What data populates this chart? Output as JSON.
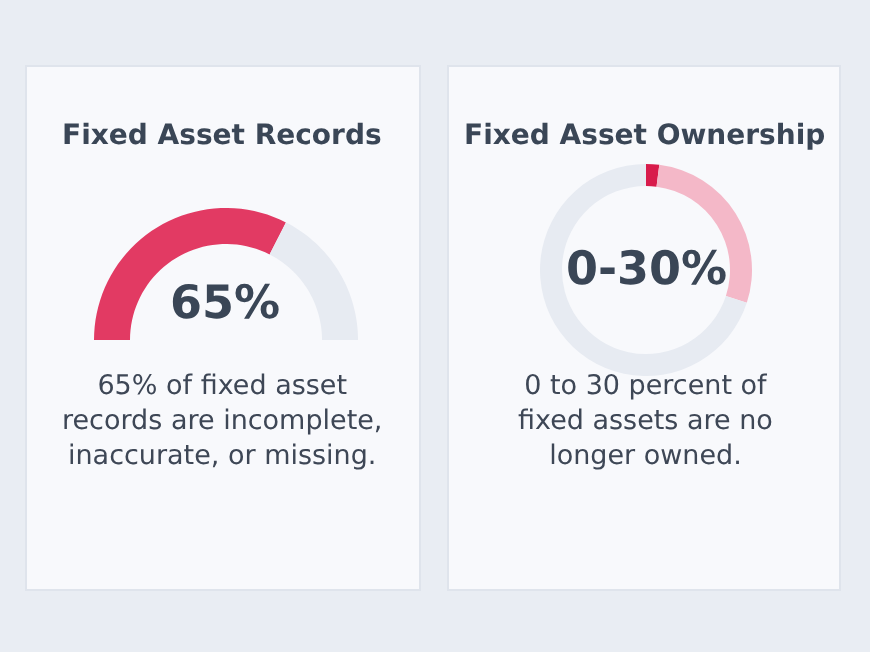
{
  "chart_data": [
    {
      "type": "donut",
      "title": "Fixed Asset Records",
      "categories": [
        null,
        null
      ],
      "values": [
        65,
        35
      ],
      "colors": [
        "#e23a63",
        "#e7ebf2"
      ],
      "annotations": [
        "65%",
        "65% of fixed asset records are incomplete, inaccurate, or missing."
      ]
    },
    {
      "type": "donut",
      "title": "Fixed Asset Ownership",
      "categories": [
        null,
        null,
        null
      ],
      "values": [
        2,
        28,
        70
      ],
      "colors": [
        "#d81b4b",
        "#f4b8c8",
        "#e7ebf2"
      ],
      "annotations": [
        "0-30%",
        "0 to 30 percent of fixed assets are no longer owned."
      ]
    }
  ]
}
